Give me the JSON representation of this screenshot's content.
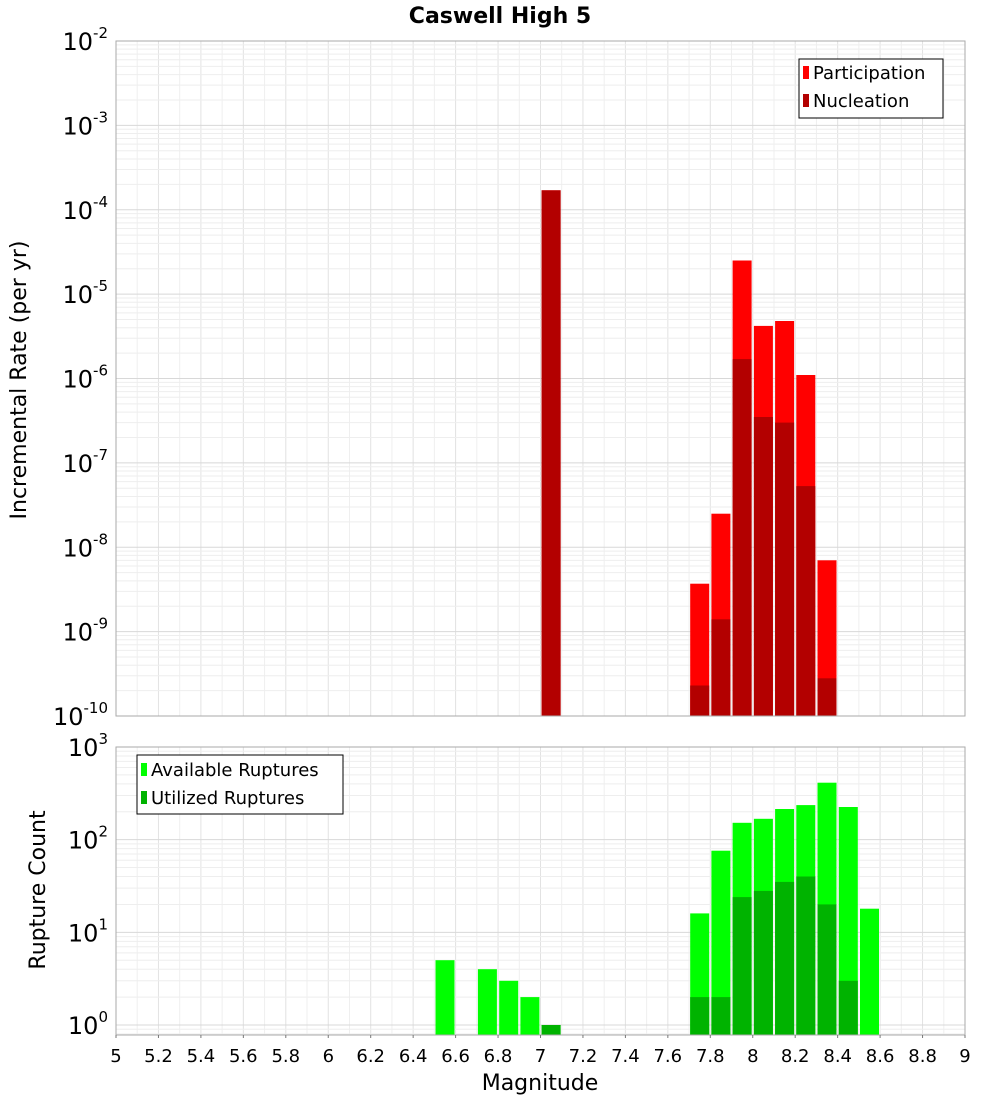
{
  "chart_data": [
    {
      "type": "bar",
      "title": "Caswell High 5",
      "xlabel": "",
      "ylabel": "Incremental Rate (per yr)",
      "yscale": "log",
      "xlim": [
        5,
        9
      ],
      "ylim": [
        1e-10,
        0.01
      ],
      "grid": true,
      "legend_position": "top-right",
      "ytick_exponents": [
        "-2",
        "-3",
        "-4",
        "-5",
        "-6",
        "-7",
        "-8",
        "-9",
        "-10"
      ],
      "series": [
        {
          "name": "Participation",
          "color": "#ff0000",
          "x": [
            7.05,
            7.75,
            7.85,
            7.95,
            8.05,
            8.15,
            8.25,
            8.35
          ],
          "values": [
            0.00017,
            3.7e-09,
            2.5e-08,
            2.5e-05,
            4.2e-06,
            4.8e-06,
            1.1e-06,
            7e-09
          ]
        },
        {
          "name": "Nucleation",
          "color": "#b30000",
          "x": [
            7.05,
            7.75,
            7.85,
            7.95,
            8.05,
            8.15,
            8.25,
            8.35
          ],
          "values": [
            0.00017,
            2.3e-10,
            1.4e-09,
            1.7e-06,
            3.5e-07,
            3e-07,
            5.3e-08,
            2.8e-10
          ]
        }
      ]
    },
    {
      "type": "bar",
      "title": "",
      "xlabel": "Magnitude",
      "ylabel": "Rupture Count",
      "yscale": "log",
      "xlim": [
        5,
        9
      ],
      "ylim": [
        0.78,
        1000
      ],
      "grid": true,
      "legend_position": "top-left",
      "ytick_exponents": [
        "3",
        "2",
        "1",
        "0"
      ],
      "xticks": [
        "5",
        "5.2",
        "5.4",
        "5.6",
        "5.8",
        "6",
        "6.2",
        "6.4",
        "6.6",
        "6.8",
        "7",
        "7.2",
        "7.4",
        "7.6",
        "7.8",
        "8",
        "8.2",
        "8.4",
        "8.6",
        "8.8",
        "9"
      ],
      "series": [
        {
          "name": "Available Ruptures",
          "color": "#00ff00",
          "x": [
            6.55,
            6.75,
            6.85,
            6.95,
            7.05,
            7.75,
            7.85,
            7.95,
            8.05,
            8.15,
            8.25,
            8.35,
            8.45,
            8.55
          ],
          "values": [
            5,
            4,
            3,
            2,
            1,
            16,
            76,
            152,
            168,
            214,
            236,
            412,
            225,
            18
          ]
        },
        {
          "name": "Utilized Ruptures",
          "color": "#00b300",
          "x": [
            7.05,
            7.75,
            7.85,
            7.95,
            8.05,
            8.15,
            8.25,
            8.35,
            8.45
          ],
          "values": [
            1,
            2,
            2,
            24,
            28,
            35,
            40,
            20,
            3
          ]
        }
      ]
    }
  ]
}
